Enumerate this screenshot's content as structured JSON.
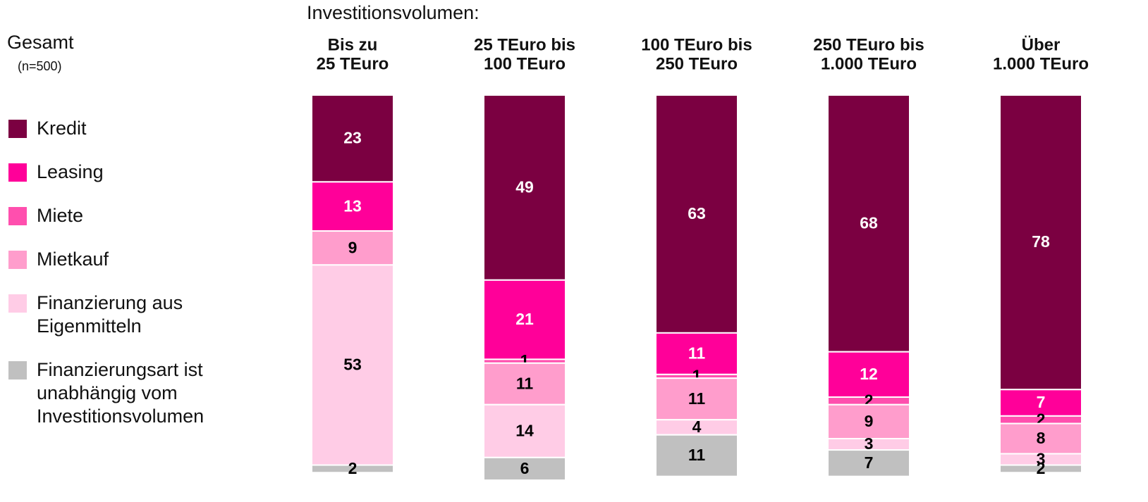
{
  "chart_data": {
    "type": "stacked_bar",
    "title": "Investitionsvolumen:",
    "subtitle": "Gesamt",
    "note": "(n=500)",
    "categories": [
      [
        "Bis zu",
        "25 TEuro"
      ],
      [
        "25 TEuro bis",
        "100 TEuro"
      ],
      [
        "100 TEuro bis",
        "250 TEuro"
      ],
      [
        "250 TEuro bis",
        "1.000 TEuro"
      ],
      [
        "Über",
        "1.000 TEuro"
      ]
    ],
    "series": [
      {
        "name": "Kredit",
        "color": "#7b0041",
        "values": [
          23,
          49,
          63,
          68,
          78
        ]
      },
      {
        "name": "Leasing",
        "color": "#ff0099",
        "values": [
          13,
          21,
          11,
          12,
          7
        ]
      },
      {
        "name": "Miete",
        "color": "#ff4fae",
        "values": [
          null,
          1,
          1,
          2,
          2
        ]
      },
      {
        "name": "Mietkauf",
        "color": "#ff9dcc",
        "values": [
          9,
          11,
          11,
          9,
          8
        ]
      },
      {
        "name": "Finanzierung aus Eigenmitteln",
        "color": "#ffcce6",
        "values": [
          53,
          14,
          4,
          3,
          3
        ]
      },
      {
        "name": "Finanzierungsart ist unabhängig vom Investitionsvolumen",
        "color": "#c0c0c0",
        "values": [
          2,
          6,
          11,
          7,
          2
        ]
      }
    ]
  }
}
